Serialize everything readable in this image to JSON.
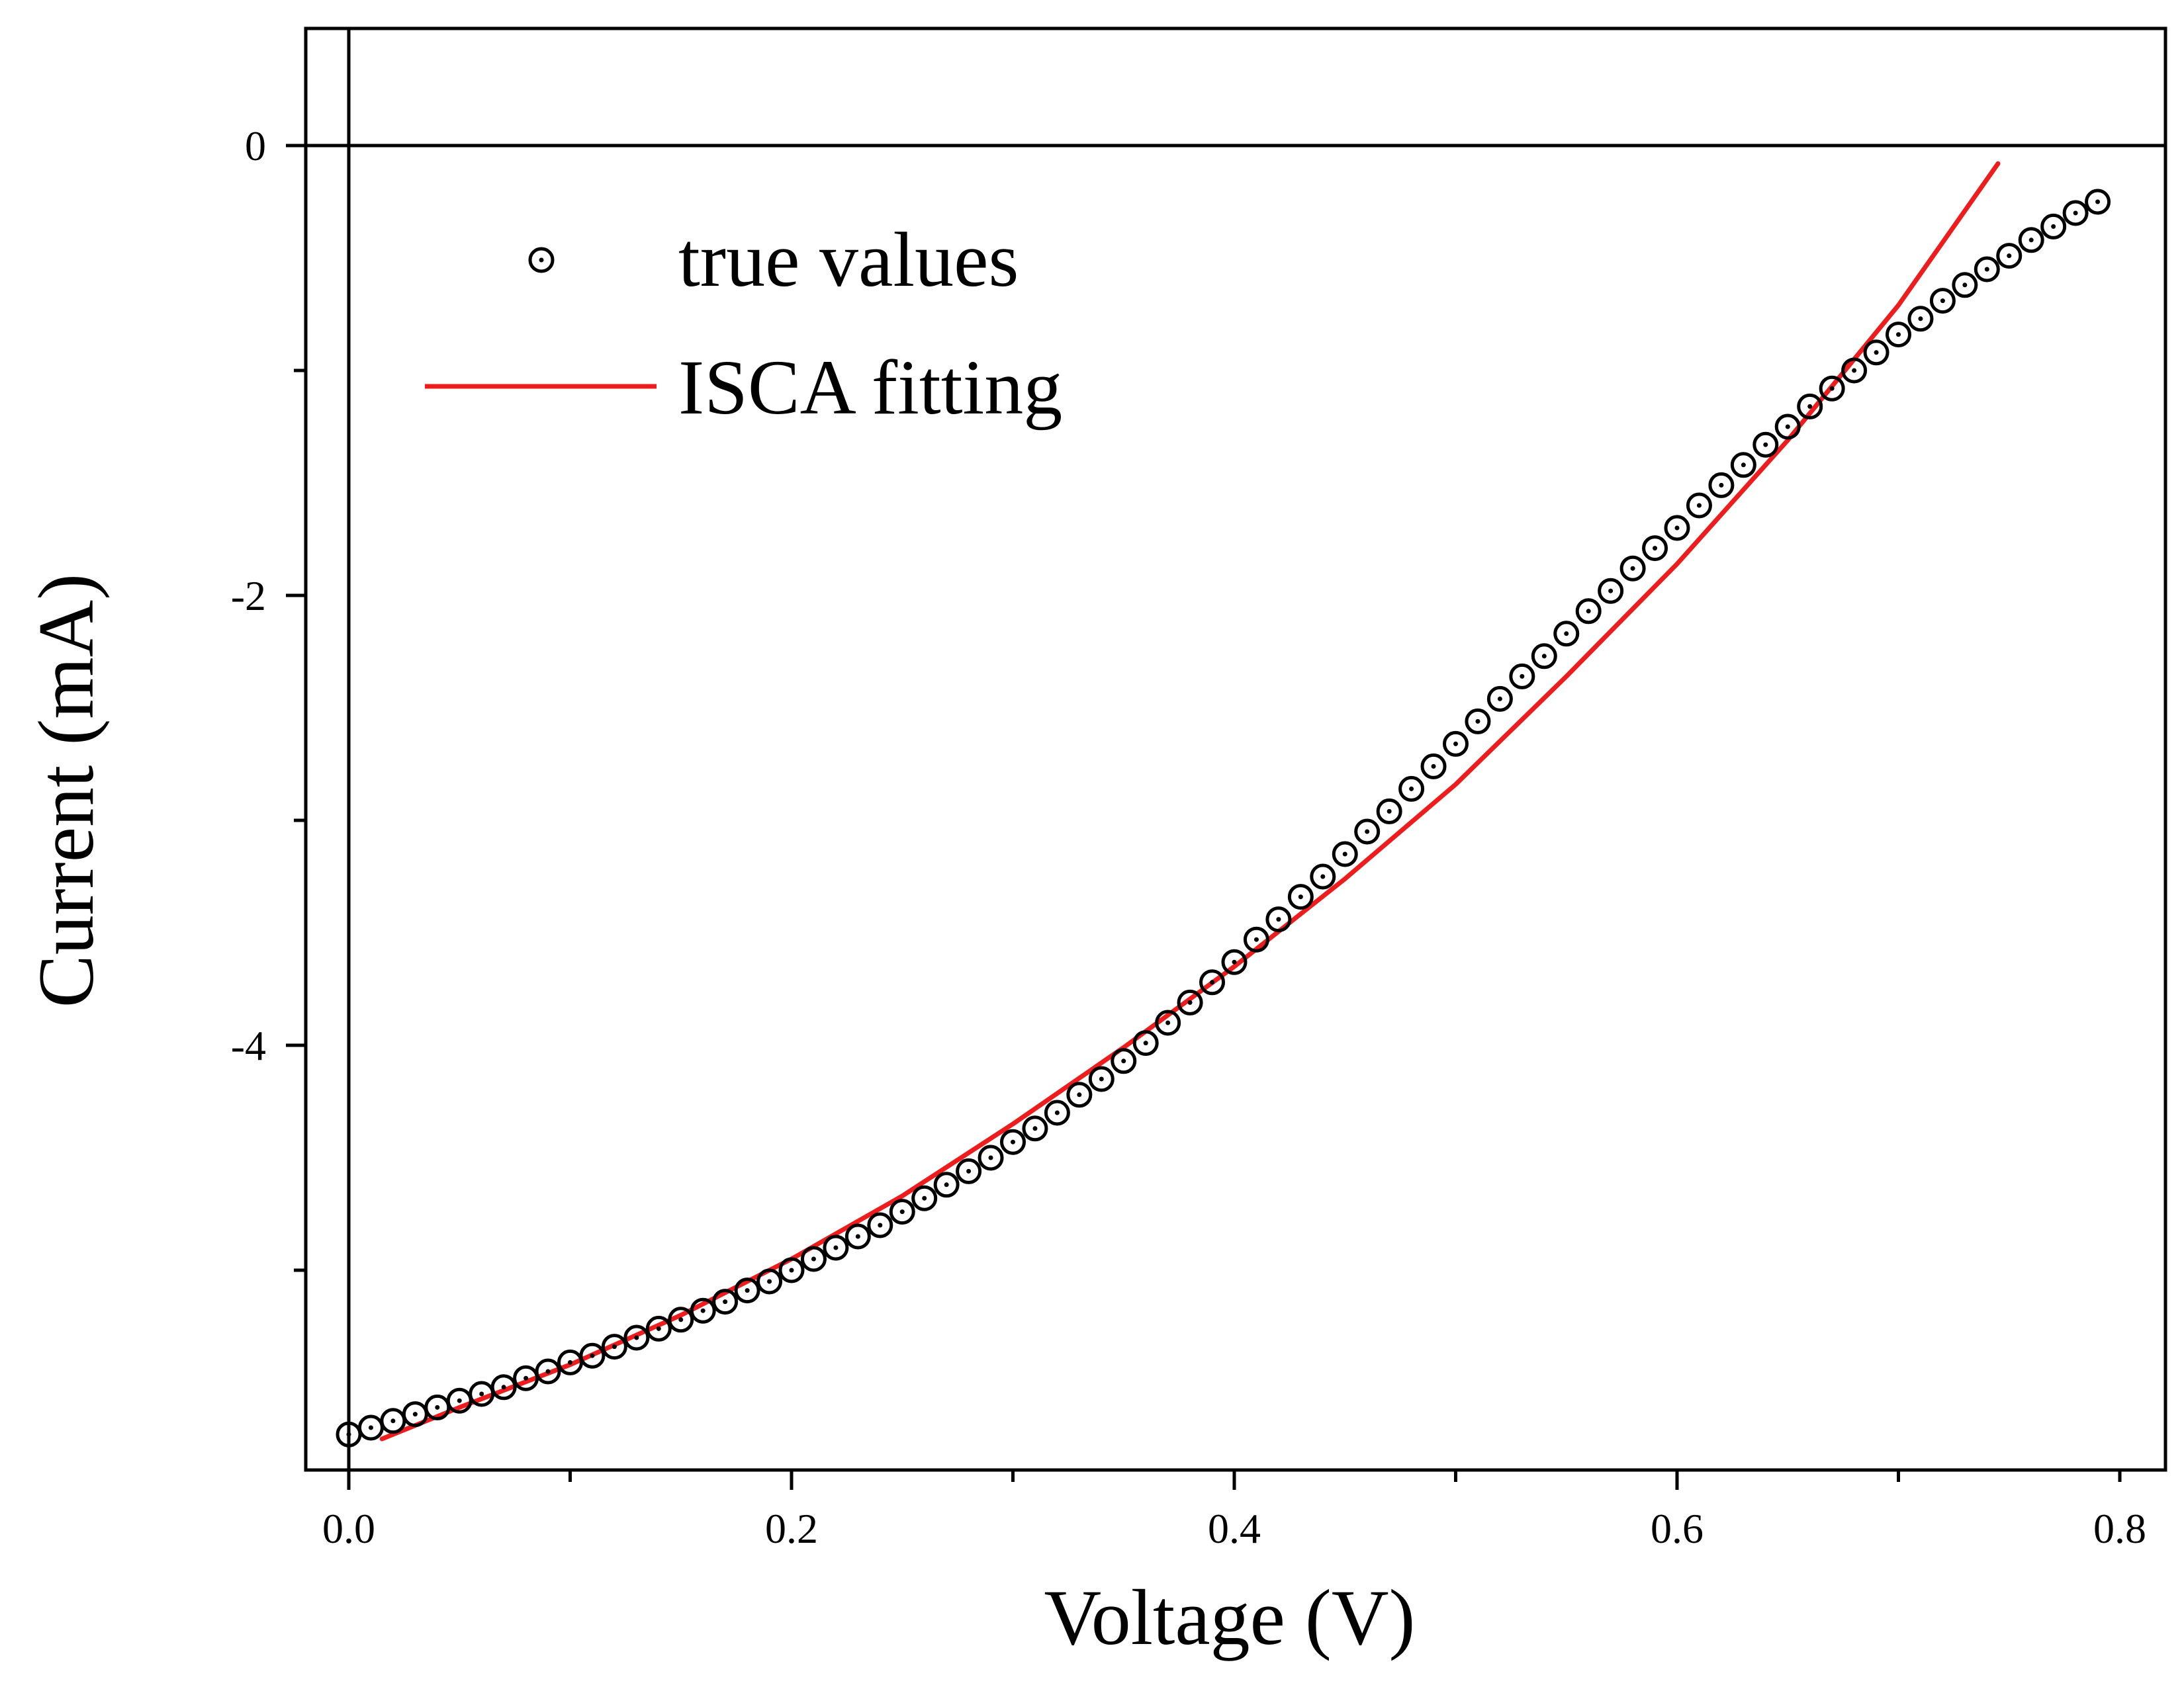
{
  "chart_data": {
    "type": "scatter",
    "title": "",
    "xlabel": "Voltage (V)",
    "ylabel": "Current (mA)",
    "xlim": [
      -0.02,
      0.82
    ],
    "ylim": [
      -5.65,
      0.45
    ],
    "x_ticks": [
      0.0,
      0.2,
      0.4,
      0.6,
      0.8
    ],
    "x_tick_labels": [
      "0.0",
      "0.2",
      "0.4",
      "0.6",
      "0.8"
    ],
    "y_ticks": [
      0,
      -2,
      -4
    ],
    "y_tick_labels": [
      "0",
      "-2",
      "-4"
    ],
    "grid": false,
    "legend_position": "top-left",
    "series": [
      {
        "name": "true values",
        "style": "open-circle-markers",
        "color": "#000000",
        "x": [
          0.0,
          0.01,
          0.02,
          0.03,
          0.04,
          0.05,
          0.06,
          0.07,
          0.08,
          0.09,
          0.1,
          0.11,
          0.12,
          0.13,
          0.14,
          0.15,
          0.16,
          0.17,
          0.18,
          0.19,
          0.2,
          0.21,
          0.22,
          0.23,
          0.24,
          0.25,
          0.26,
          0.27,
          0.28,
          0.29,
          0.3,
          0.31,
          0.32,
          0.33,
          0.34,
          0.35,
          0.36,
          0.37,
          0.38,
          0.39,
          0.4,
          0.41,
          0.42,
          0.43,
          0.44,
          0.45,
          0.46,
          0.47,
          0.48,
          0.49,
          0.5,
          0.51,
          0.52,
          0.53,
          0.54,
          0.55,
          0.56,
          0.57,
          0.58,
          0.59,
          0.6,
          0.61,
          0.62,
          0.63,
          0.64,
          0.65,
          0.66,
          0.67,
          0.68,
          0.69,
          0.7,
          0.71,
          0.72,
          0.73,
          0.74,
          0.75,
          0.76,
          0.77,
          0.78,
          0.79
        ],
        "y": [
          -5.73,
          -5.7,
          -5.67,
          -5.64,
          -5.61,
          -5.58,
          -5.55,
          -5.52,
          -5.48,
          -5.45,
          -5.41,
          -5.38,
          -5.34,
          -5.3,
          -5.26,
          -5.22,
          -5.18,
          -5.14,
          -5.09,
          -5.05,
          -5.0,
          -4.95,
          -4.9,
          -4.85,
          -4.8,
          -4.74,
          -4.68,
          -4.62,
          -4.56,
          -4.5,
          -4.43,
          -4.37,
          -4.3,
          -4.22,
          -4.15,
          -4.07,
          -3.99,
          -3.9,
          -3.81,
          -3.72,
          -3.63,
          -3.53,
          -3.44,
          -3.34,
          -3.25,
          -3.15,
          -3.05,
          -2.96,
          -2.86,
          -2.76,
          -2.66,
          -2.56,
          -2.46,
          -2.36,
          -2.27,
          -2.17,
          -2.07,
          -1.98,
          -1.88,
          -1.79,
          -1.7,
          -1.6,
          -1.51,
          -1.42,
          -1.33,
          -1.25,
          -1.16,
          -1.08,
          -1.0,
          -0.92,
          -0.84,
          -0.77,
          -0.69,
          -0.62,
          -0.55,
          -0.49,
          -0.42,
          -0.36,
          -0.3,
          -0.25
        ]
      },
      {
        "name": "ISCA fitting",
        "style": "line",
        "color": "#ee1c1c",
        "x": [
          0.015,
          0.05,
          0.1,
          0.15,
          0.2,
          0.25,
          0.3,
          0.35,
          0.4,
          0.45,
          0.5,
          0.55,
          0.6,
          0.65,
          0.7,
          0.72,
          0.745
        ],
        "y": [
          -5.75,
          -5.61,
          -5.42,
          -5.2,
          -4.95,
          -4.67,
          -4.35,
          -4.01,
          -3.65,
          -3.26,
          -2.84,
          -2.36,
          -1.86,
          -1.31,
          -0.71,
          -0.43,
          -0.08
        ]
      }
    ]
  }
}
